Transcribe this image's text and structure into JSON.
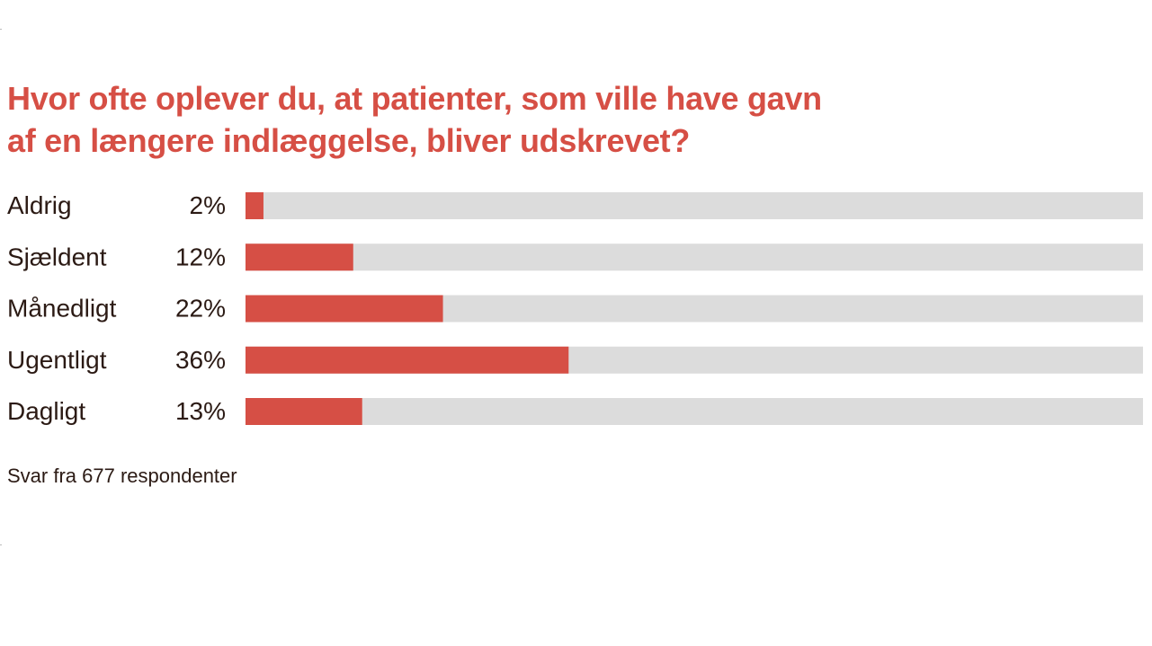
{
  "chart_data": {
    "type": "bar",
    "orientation": "horizontal",
    "title_lines": [
      "Hvor ofte oplever du, at patienter, som ville have gavn",
      "af en længere indlæggelse, bliver udskrevet?"
    ],
    "categories": [
      "Aldrig",
      "Sjældent",
      "Månedligt",
      "Ugentligt",
      "Dagligt"
    ],
    "values": [
      2,
      12,
      22,
      36,
      13
    ],
    "value_labels": [
      "2%",
      "12%",
      "22%",
      "36%",
      "13%"
    ],
    "unit": "%",
    "xlim": [
      0,
      100
    ],
    "footnote": "Svar fra 677 respondenter",
    "grid": false,
    "legend": "none"
  },
  "colors": {
    "bar": "#d64f45",
    "track": "#dcdcdc",
    "title": "#d64f45",
    "text": "#2b1a14"
  }
}
